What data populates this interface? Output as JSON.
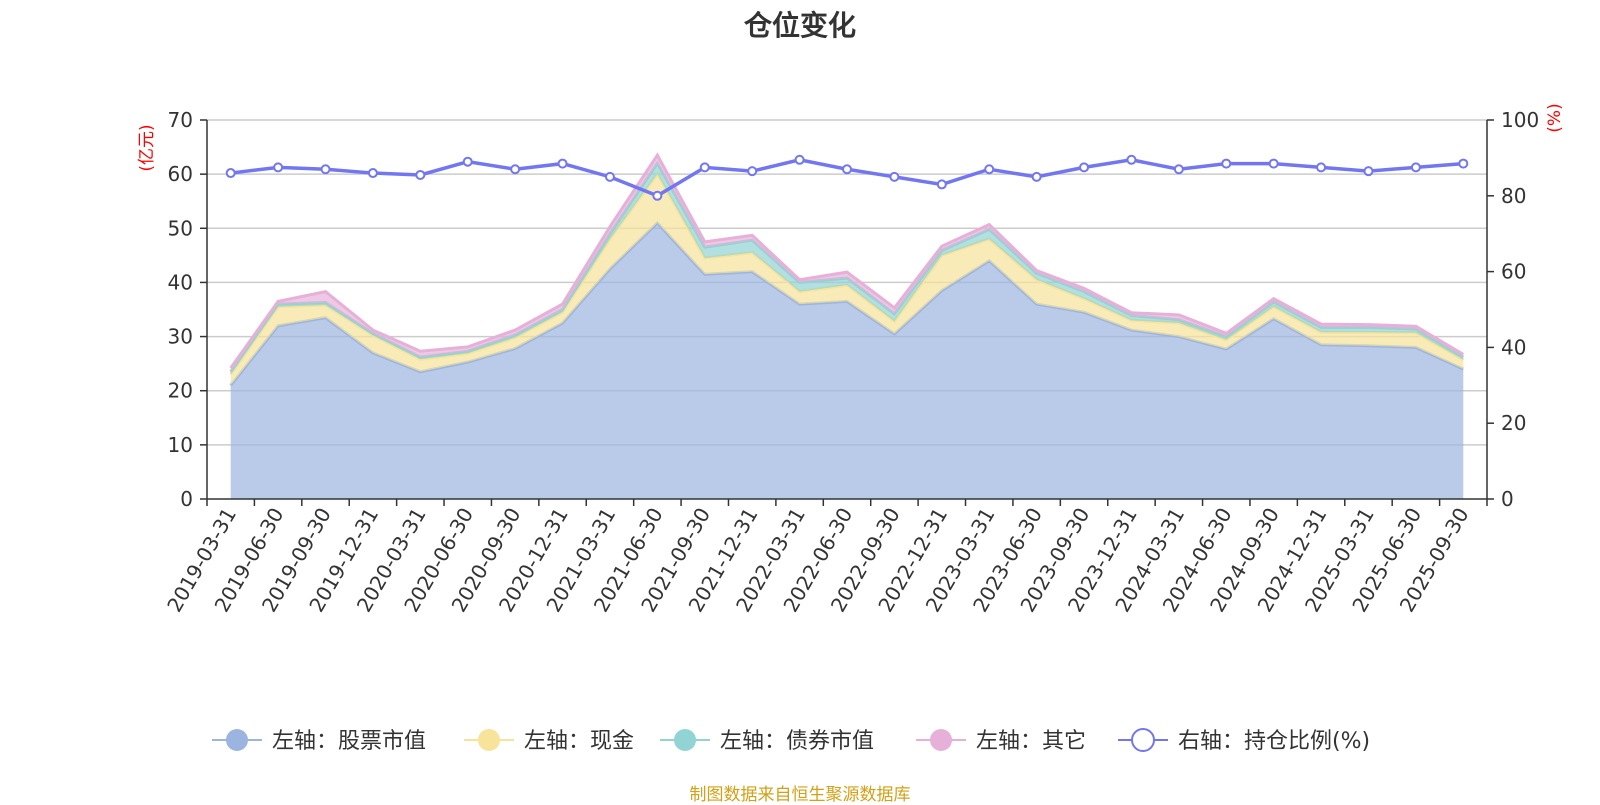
{
  "title": "仓位变化",
  "source_note": "制图数据来自恒生聚源数据库",
  "colors": {
    "stock": "#9bb5e0",
    "cash": "#f7e39a",
    "bond": "#92d3d3",
    "other": "#e7b0d8",
    "ratio": "#7276f0",
    "unit": "#ff0000",
    "grid": "#cccccc",
    "axis": "#333333"
  },
  "chart_data": {
    "type": "area",
    "x": [
      "2019-03-31",
      "2019-06-30",
      "2019-09-30",
      "2019-12-31",
      "2020-03-31",
      "2020-06-30",
      "2020-09-30",
      "2020-12-31",
      "2021-03-31",
      "2021-06-30",
      "2021-09-30",
      "2021-12-31",
      "2022-03-31",
      "2022-06-30",
      "2022-09-30",
      "2022-12-31",
      "2023-03-31",
      "2023-06-30",
      "2023-09-30",
      "2023-12-31",
      "2024-03-31",
      "2024-06-30",
      "2024-09-30",
      "2024-12-31",
      "2025-03-31",
      "2025-06-30",
      "2025-09-30"
    ],
    "left_axis": {
      "unit": "(亿元)",
      "ylim": [
        0,
        70
      ],
      "ticks": [
        0,
        10,
        20,
        30,
        40,
        50,
        60,
        70
      ]
    },
    "right_axis": {
      "unit": "(%)",
      "ylim": [
        0,
        100
      ],
      "ticks": [
        0,
        20,
        40,
        60,
        80,
        100
      ]
    },
    "series": [
      {
        "name": "左轴：股票市值",
        "key": "stock",
        "axis": "left",
        "stacked": true,
        "values": [
          21,
          32,
          33.5,
          27,
          23.5,
          25.3,
          27.8,
          32.5,
          42.5,
          51,
          41.5,
          42,
          36,
          36.5,
          30.5,
          38.5,
          44,
          36,
          34.5,
          31.2,
          30,
          27.7,
          33.3,
          28.5,
          28.3,
          28,
          24
        ]
      },
      {
        "name": "左轴：现金",
        "key": "cash",
        "axis": "left",
        "stacked": true,
        "values": [
          2,
          3.5,
          2.3,
          3.2,
          2.3,
          1.6,
          2,
          2,
          5.5,
          9,
          3,
          3.5,
          2.3,
          3,
          2.3,
          6.5,
          4,
          4.5,
          2.5,
          1.8,
          2.5,
          1.7,
          2.2,
          2.3,
          2.5,
          2.7,
          1.7
        ]
      },
      {
        "name": "左轴：债券市值",
        "key": "bond",
        "axis": "left",
        "stacked": true,
        "values": [
          0.5,
          0.5,
          0.5,
          0.4,
          0.4,
          0.4,
          0.5,
          0.5,
          1,
          2,
          2,
          2.3,
          1.7,
          1.3,
          1.4,
          0.9,
          1.8,
          1.2,
          1.3,
          0.9,
          0.6,
          0.6,
          0.9,
          0.9,
          0.9,
          0.7,
          0.5
        ]
      },
      {
        "name": "左轴：其它",
        "key": "other",
        "axis": "left",
        "stacked": true,
        "values": [
          0.7,
          0.5,
          2,
          0.6,
          1.1,
          0.8,
          0.9,
          1,
          1.3,
          1.5,
          1,
          0.9,
          0.5,
          1.1,
          1.1,
          0.8,
          0.9,
          0.5,
          0.6,
          0.5,
          0.9,
          0.6,
          0.6,
          0.6,
          0.5,
          0.5,
          0.5
        ]
      },
      {
        "name": "右轴：持仓比例(%)",
        "key": "ratio",
        "axis": "right",
        "stacked": false,
        "values": [
          86,
          87.5,
          87,
          86,
          85.5,
          89,
          87,
          88.5,
          85,
          80,
          87.5,
          86.5,
          89.5,
          87,
          85,
          83,
          87,
          85,
          87.5,
          89.5,
          87,
          88.5,
          88.5,
          87.5,
          86.5,
          87.5,
          88.5
        ]
      }
    ],
    "grid": true,
    "legend_position": "bottom"
  }
}
